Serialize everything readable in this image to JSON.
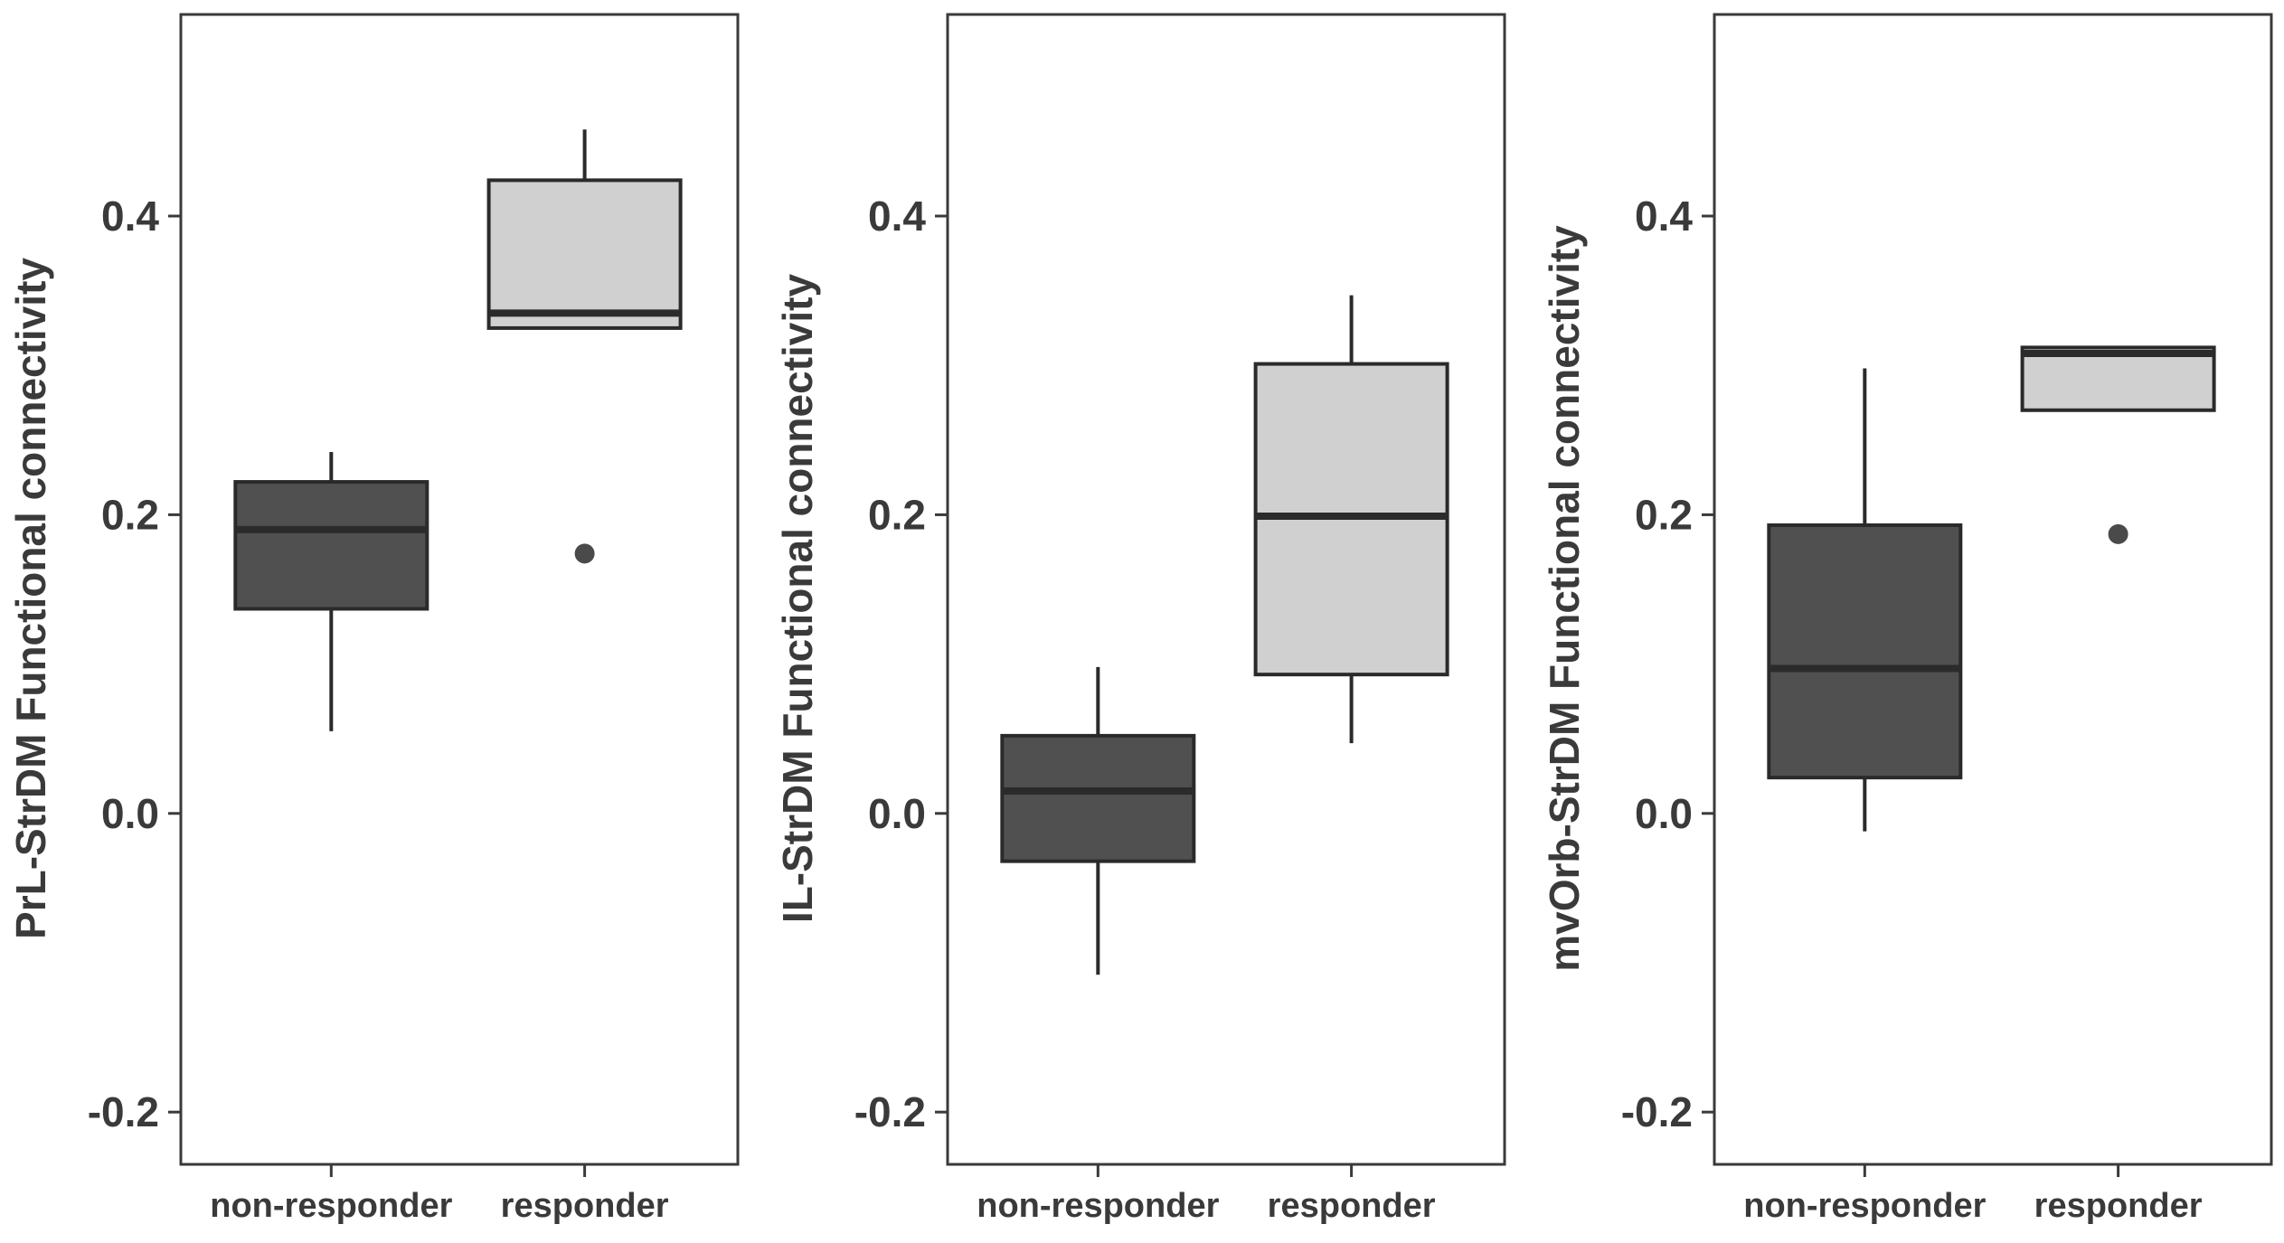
{
  "chart_data": [
    {
      "type": "boxplot",
      "ylabel": "PrL-StrDM Functional connectivity",
      "xlabel": "",
      "ylim": [
        -0.235,
        0.535
      ],
      "yticks": [
        {
          "value": -0.2,
          "label": "-0.2"
        },
        {
          "value": 0.0,
          "label": "0.0"
        },
        {
          "value": 0.2,
          "label": "0.2"
        },
        {
          "value": 0.4,
          "label": "0.4"
        }
      ],
      "grid": false,
      "categories": [
        "non-responder",
        "responder"
      ],
      "boxes": [
        {
          "category": "non-responder",
          "whisker_low": 0.055,
          "q1": 0.137,
          "median": 0.19,
          "q3": 0.222,
          "whisker_high": 0.242,
          "outliers": [],
          "fill": "#505050"
        },
        {
          "category": "responder",
          "whisker_low": 0.325,
          "q1": 0.325,
          "median": 0.335,
          "q3": 0.424,
          "whisker_high": 0.458,
          "outliers": [
            0.174
          ],
          "fill": "#d0d0d0"
        }
      ]
    },
    {
      "type": "boxplot",
      "ylabel": "IL-StrDM Functional connectivity",
      "xlabel": "",
      "ylim": [
        -0.235,
        0.535
      ],
      "yticks": [
        {
          "value": -0.2,
          "label": "-0.2"
        },
        {
          "value": 0.0,
          "label": "0.0"
        },
        {
          "value": 0.2,
          "label": "0.2"
        },
        {
          "value": 0.4,
          "label": "0.4"
        }
      ],
      "grid": false,
      "categories": [
        "non-responder",
        "responder"
      ],
      "boxes": [
        {
          "category": "non-responder",
          "whisker_low": -0.108,
          "q1": -0.032,
          "median": 0.015,
          "q3": 0.052,
          "whisker_high": 0.098,
          "outliers": [],
          "fill": "#505050"
        },
        {
          "category": "responder",
          "whisker_low": 0.047,
          "q1": 0.093,
          "median": 0.199,
          "q3": 0.301,
          "whisker_high": 0.347,
          "outliers": [],
          "fill": "#d0d0d0"
        }
      ]
    },
    {
      "type": "boxplot",
      "ylabel": "mvOrb-StrDM Functional connectivity",
      "xlabel": "",
      "ylim": [
        -0.235,
        0.535
      ],
      "yticks": [
        {
          "value": -0.2,
          "label": "-0.2"
        },
        {
          "value": 0.0,
          "label": "0.0"
        },
        {
          "value": 0.2,
          "label": "0.2"
        },
        {
          "value": 0.4,
          "label": "0.4"
        }
      ],
      "grid": false,
      "categories": [
        "non-responder",
        "responder"
      ],
      "boxes": [
        {
          "category": "non-responder",
          "whisker_low": -0.012,
          "q1": 0.024,
          "median": 0.097,
          "q3": 0.193,
          "whisker_high": 0.298,
          "outliers": [],
          "fill": "#505050"
        },
        {
          "category": "responder",
          "whisker_low": 0.27,
          "q1": 0.27,
          "median": 0.308,
          "q3": 0.312,
          "whisker_high": 0.312,
          "outliers": [
            0.187
          ],
          "fill": "#d0d0d0"
        }
      ]
    }
  ],
  "colors": {
    "stroke": "#2a2a2a",
    "median": "#2b2b2b",
    "outlier": "#4a4a4a",
    "text": "#3a3a3a",
    "panel_border": "#3a3a3a"
  }
}
